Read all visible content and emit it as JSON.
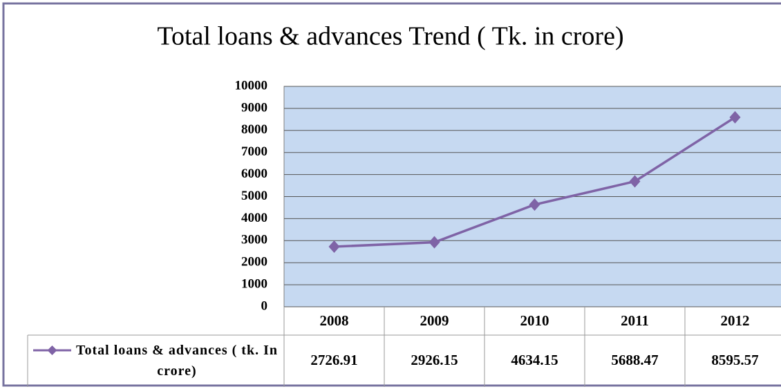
{
  "chart_data": {
    "type": "line",
    "title": "Total loans & advances Trend ( Tk. in crore)",
    "categories": [
      "2008",
      "2009",
      "2010",
      "2011",
      "2012"
    ],
    "series": [
      {
        "name": "Total loans & advances ( tk. In crore)",
        "color": "#7f63a6",
        "values": [
          2726.91,
          2926.15,
          4634.15,
          5688.47,
          8595.57
        ]
      }
    ],
    "ylim": [
      0,
      10000
    ],
    "yticks": [
      0,
      1000,
      2000,
      3000,
      4000,
      5000,
      6000,
      7000,
      8000,
      9000,
      10000
    ],
    "grid": true,
    "data_table": true
  }
}
